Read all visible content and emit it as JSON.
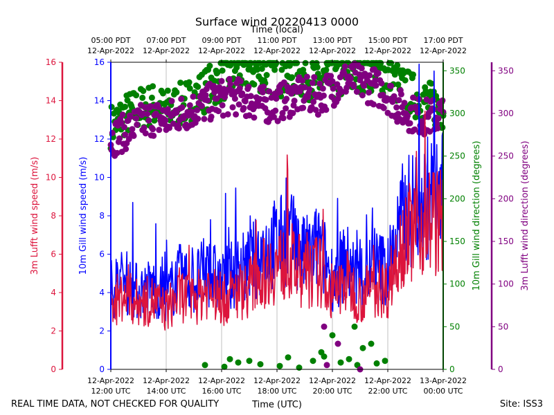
{
  "chart_data": {
    "type": "line",
    "title": "Surface wind 20220413 0000",
    "top_axis_label": "Time (local)",
    "xlabel": "Time (UTC)",
    "footer_left": "REAL TIME DATA, NOT CHECKED FOR QUALITY",
    "footer_right": "Site: ISS3",
    "x_range_utc_hours": [
      12,
      24
    ],
    "bottom_ticks": [
      {
        "hour": 12,
        "line1": "12-Apr-2022",
        "line2": "12:00 UTC"
      },
      {
        "hour": 14,
        "line1": "12-Apr-2022",
        "line2": "14:00 UTC"
      },
      {
        "hour": 16,
        "line1": "12-Apr-2022",
        "line2": "16:00 UTC"
      },
      {
        "hour": 18,
        "line1": "12-Apr-2022",
        "line2": "18:00 UTC"
      },
      {
        "hour": 20,
        "line1": "12-Apr-2022",
        "line2": "20:00 UTC"
      },
      {
        "hour": 22,
        "line1": "12-Apr-2022",
        "line2": "22:00 UTC"
      },
      {
        "hour": 24,
        "line1": "13-Apr-2022",
        "line2": "00:00 UTC"
      }
    ],
    "top_ticks": [
      {
        "hour": 12,
        "line1": "05:00 PDT",
        "line2": "12-Apr-2022"
      },
      {
        "hour": 14,
        "line1": "07:00 PDT",
        "line2": "12-Apr-2022"
      },
      {
        "hour": 16,
        "line1": "09:00 PDT",
        "line2": "12-Apr-2022"
      },
      {
        "hour": 18,
        "line1": "11:00 PDT",
        "line2": "12-Apr-2022"
      },
      {
        "hour": 20,
        "line1": "13:00 PDT",
        "line2": "12-Apr-2022"
      },
      {
        "hour": 22,
        "line1": "15:00 PDT",
        "line2": "12-Apr-2022"
      },
      {
        "hour": 24,
        "line1": "17:00 PDT",
        "line2": "12-Apr-2022"
      }
    ],
    "speed_axes": [
      {
        "id": "lufft_speed",
        "label": "3m Lufft wind speed (m/s)",
        "color": "#dc143c",
        "ylim": [
          0,
          16
        ],
        "ticks": [
          0,
          2,
          4,
          6,
          8,
          10,
          12,
          14,
          16
        ]
      },
      {
        "id": "gill_speed",
        "label": "10m Gill wind speed (m/s)",
        "color": "#0000ff",
        "ylim": [
          0,
          16
        ],
        "ticks": [
          0,
          2,
          4,
          6,
          8,
          10,
          12,
          14,
          16
        ]
      }
    ],
    "direction_axes": [
      {
        "id": "gill_dir",
        "label": "10m Gill wind direction (degrees)",
        "color": "#008000",
        "ylim": [
          0,
          360
        ],
        "ticks": [
          0,
          50,
          100,
          150,
          200,
          250,
          300,
          350
        ]
      },
      {
        "id": "lufft_dir",
        "label": "3m Lufft wind direction (degrees)",
        "color": "#800080",
        "ylim": [
          0,
          360
        ],
        "ticks": [
          0,
          50,
          100,
          150,
          200,
          250,
          300,
          350
        ]
      }
    ],
    "series": [
      {
        "name": "10m Gill wind speed",
        "axis": "gill_speed",
        "kind": "line",
        "color": "#0000ff",
        "x": [
          12.0,
          12.5,
          13.0,
          13.5,
          14.0,
          14.5,
          15.0,
          15.5,
          16.0,
          16.5,
          17.0,
          17.5,
          18.0,
          18.5,
          19.0,
          19.5,
          20.0,
          20.5,
          21.0,
          21.5,
          22.0,
          22.5,
          23.0,
          23.5,
          24.0
        ],
        "y": [
          4.2,
          4.6,
          4.0,
          4.3,
          3.8,
          4.8,
          4.5,
          5.2,
          4.4,
          5.0,
          5.4,
          6.2,
          6.6,
          6.8,
          5.8,
          6.4,
          4.8,
          5.6,
          4.6,
          5.4,
          5.2,
          7.8,
          8.6,
          9.0,
          9.0
        ]
      },
      {
        "name": "3m Lufft wind speed",
        "axis": "lufft_speed",
        "kind": "line",
        "color": "#dc143c",
        "x": [
          12.0,
          12.5,
          13.0,
          13.5,
          14.0,
          14.5,
          15.0,
          15.5,
          16.0,
          16.5,
          17.0,
          17.5,
          18.0,
          18.5,
          19.0,
          19.5,
          20.0,
          20.5,
          21.0,
          21.5,
          22.0,
          22.5,
          23.0,
          23.5,
          24.0
        ],
        "y": [
          3.4,
          3.9,
          3.4,
          3.6,
          3.1,
          3.9,
          3.6,
          4.2,
          3.5,
          4.0,
          4.3,
          5.0,
          5.4,
          5.6,
          4.8,
          5.2,
          3.8,
          4.6,
          3.7,
          4.3,
          4.2,
          6.8,
          7.4,
          7.8,
          7.6
        ]
      },
      {
        "name": "10m Gill wind direction",
        "axis": "gill_dir",
        "kind": "scatter",
        "color": "#008000",
        "x": [
          12.0,
          12.5,
          13.0,
          13.5,
          14.0,
          14.5,
          15.0,
          15.5,
          16.0,
          16.5,
          17.0,
          17.5,
          18.0,
          18.5,
          19.0,
          19.5,
          20.0,
          20.5,
          21.0,
          21.5,
          22.0,
          22.5,
          23.0,
          23.5,
          24.0
        ],
        "y": [
          285,
          298,
          305,
          310,
          303,
          310,
          318,
          330,
          340,
          347,
          352,
          350,
          345,
          347,
          343,
          338,
          340,
          345,
          350,
          352,
          345,
          330,
          320,
          312,
          305
        ]
      },
      {
        "name": "3m Lufft wind direction",
        "axis": "lufft_dir",
        "kind": "scatter",
        "color": "#800080",
        "x": [
          12.0,
          12.5,
          13.0,
          13.5,
          14.0,
          14.5,
          15.0,
          15.5,
          16.0,
          16.5,
          17.0,
          17.5,
          18.0,
          18.5,
          19.0,
          19.5,
          20.0,
          20.5,
          21.0,
          21.5,
          22.0,
          22.5,
          23.0,
          23.5,
          24.0
        ],
        "y": [
          270,
          278,
          288,
          295,
          292,
          300,
          305,
          312,
          318,
          320,
          316,
          310,
          312,
          318,
          322,
          320,
          330,
          340,
          336,
          332,
          322,
          305,
          298,
          295,
          300
        ]
      }
    ],
    "gill_dir_outliers": {
      "x": [
        15.4,
        16.1,
        16.3,
        16.6,
        17.0,
        17.4,
        18.1,
        18.4,
        18.8,
        19.3,
        19.7,
        20.0,
        20.3,
        20.6,
        20.9,
        21.1,
        21.4,
        21.6,
        21.9,
        19.6,
        20.8
      ],
      "y": [
        5,
        3,
        12,
        8,
        10,
        6,
        4,
        14,
        2,
        10,
        15,
        40,
        8,
        12,
        5,
        25,
        30,
        7,
        10,
        20,
        50
      ]
    },
    "lufft_dir_outliers": {
      "x": [
        19.7,
        20.2,
        21.0,
        19.8
      ],
      "y": [
        50,
        30,
        0,
        5
      ]
    }
  }
}
